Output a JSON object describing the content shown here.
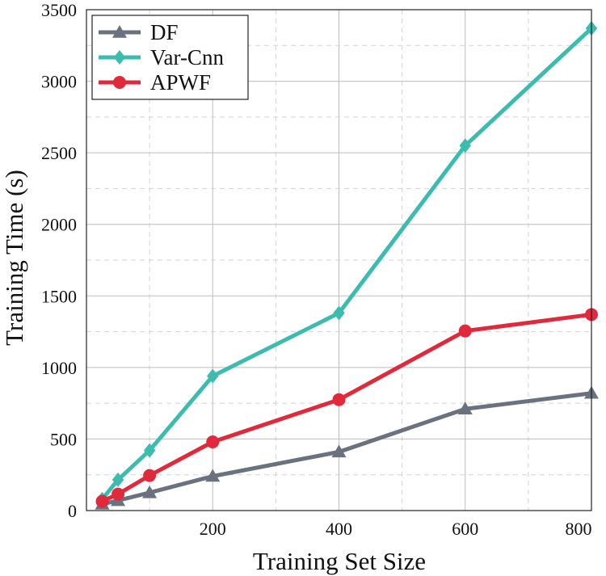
{
  "chart_data": {
    "type": "line",
    "title": "",
    "xlabel": "Training Set Size",
    "ylabel": "Training Time (s)",
    "xlim": [
      0,
      800
    ],
    "ylim": [
      0,
      3500
    ],
    "xticks": [
      200,
      400,
      600,
      800
    ],
    "yticks": [
      0,
      500,
      1000,
      1500,
      2000,
      2500,
      3000,
      3500
    ],
    "x": [
      25,
      50,
      100,
      200,
      400,
      600,
      800
    ],
    "grid": true,
    "legend_position": "top-left",
    "series": [
      {
        "name": "DF",
        "marker": "triangle",
        "color": "#6b727f",
        "values": [
          45,
          70,
          125,
          240,
          410,
          710,
          820
        ]
      },
      {
        "name": "Var-Cnn",
        "marker": "diamond",
        "color": "#3cbcae",
        "values": [
          80,
          215,
          420,
          940,
          1380,
          2550,
          3370
        ]
      },
      {
        "name": "APWF",
        "marker": "circle",
        "color": "#e0293b",
        "values": [
          65,
          115,
          245,
          480,
          775,
          1255,
          1370
        ]
      }
    ]
  }
}
